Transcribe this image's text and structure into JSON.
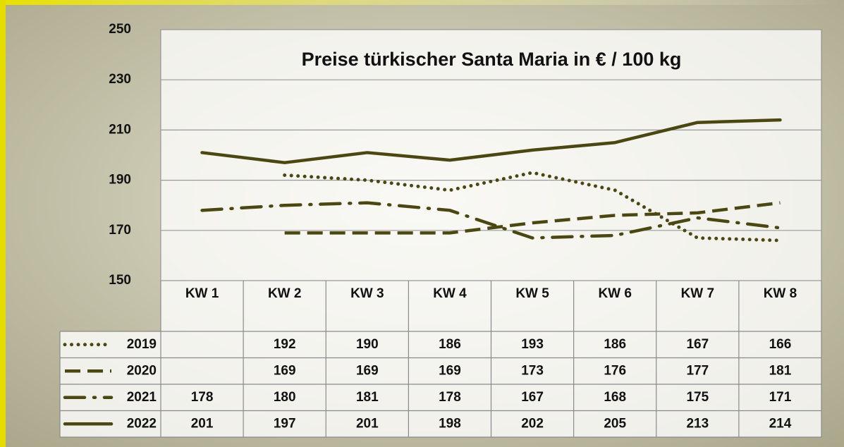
{
  "chart_data": {
    "type": "line",
    "title": "Preise türkischer Santa Maria in € / 100 kg",
    "categories": [
      "KW 1",
      "KW 2",
      "KW 3",
      "KW 4",
      "KW 5",
      "KW 6",
      "KW 7",
      "KW 8"
    ],
    "series": [
      {
        "name": "2019",
        "color": "#4b4712",
        "line_style": "dotted",
        "values": [
          null,
          192,
          190,
          186,
          193,
          186,
          167,
          166
        ]
      },
      {
        "name": "2020",
        "color": "#4b4712",
        "line_style": "dashed",
        "values": [
          null,
          169,
          169,
          169,
          173,
          176,
          177,
          181
        ]
      },
      {
        "name": "2021",
        "color": "#4b4712",
        "line_style": "dashdot",
        "values": [
          178,
          180,
          181,
          178,
          167,
          168,
          175,
          171
        ]
      },
      {
        "name": "2022",
        "color": "#4b4712",
        "line_style": "solid",
        "values": [
          201,
          197,
          201,
          198,
          202,
          205,
          213,
          214
        ]
      }
    ],
    "ylim": [
      150,
      250
    ],
    "yticks": [
      150,
      170,
      190,
      210,
      230,
      250
    ],
    "grid": true
  }
}
